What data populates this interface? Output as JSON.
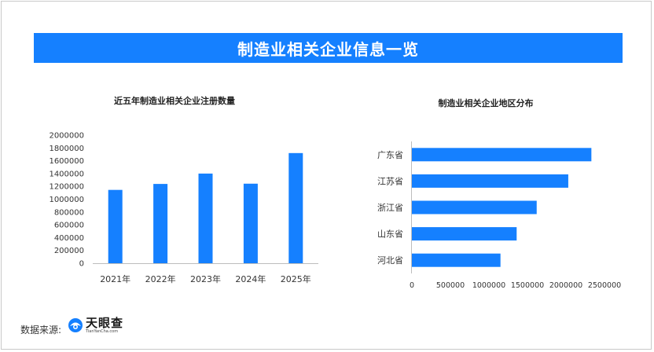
{
  "banner": {
    "title": "制造业相关企业信息一览"
  },
  "source": {
    "label": "数据来源:"
  },
  "logo": {
    "name": "天眼查",
    "domain": "TianYanCha.com",
    "accent": "#1580ff"
  },
  "colors": {
    "bar": "#1580ff",
    "banner": "#1580ff"
  },
  "chart_data": [
    {
      "type": "bar",
      "orientation": "vertical",
      "title": "近五年制造业相关企业注册数量",
      "categories": [
        "2021年",
        "2022年",
        "2023年",
        "2024年",
        "2025年"
      ],
      "values": [
        1145000,
        1238000,
        1400000,
        1242000,
        1720000
      ],
      "ylim": [
        0,
        2000000
      ],
      "yticks": [
        "0",
        "200000",
        "400000",
        "600000",
        "800000",
        "1000000",
        "1200000",
        "1400000",
        "1600000",
        "1800000",
        "2000000"
      ],
      "grid": false
    },
    {
      "type": "bar",
      "orientation": "horizontal",
      "title": "制造业相关企业地区分布",
      "categories": [
        "广东省",
        "江苏省",
        "浙江省",
        "山东省",
        "河北省"
      ],
      "values": [
        2330000,
        2030000,
        1620000,
        1360000,
        1150000
      ],
      "xlim": [
        0,
        2500000
      ],
      "xticks": [
        "0",
        "500000",
        "1000000",
        "1500000",
        "2000000",
        "2500000"
      ],
      "grid": false
    }
  ]
}
